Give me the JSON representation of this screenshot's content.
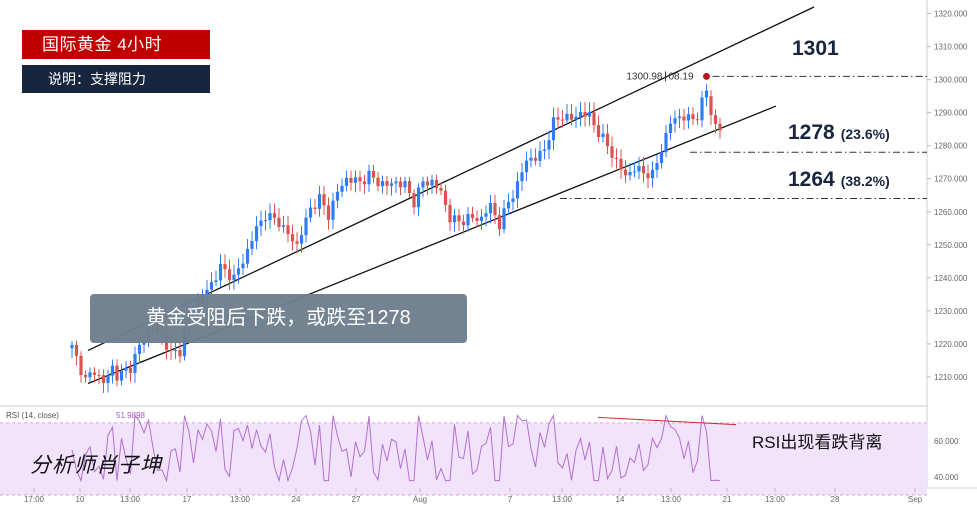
{
  "header": {
    "title_tag": "国际黄金  4小时",
    "subtitle_tag": "说明：支撑阻力"
  },
  "annotations": {
    "callout": "黄金受阻后下跌，或跌至1278",
    "analyst": "分析师肖子坤",
    "rsi_note": "RSI出现看跌背离",
    "peak_label_left": "1300.98",
    "peak_label_right": "08.19"
  },
  "levels": [
    {
      "value": "1301",
      "pct": ""
    },
    {
      "value": "1278",
      "pct": "(23.6%)"
    },
    {
      "value": "1264",
      "pct": "(38.2%)"
    }
  ],
  "colors": {
    "up": "#2f7cf6",
    "down": "#d9534f",
    "rsi_line": "#b46fd1",
    "rsi_band": "#f1e3fb",
    "red_tag": "#c00000",
    "navy_tag": "#17253f"
  },
  "chart_data": [
    {
      "type": "candlestick",
      "title": "",
      "ylim": [
        1203,
        1322
      ],
      "y_ticks": [
        "1320.000",
        "1310.000",
        "1300.000",
        "1290.000",
        "1280.000",
        "1270.000",
        "1260.000",
        "1250.000",
        "1240.000",
        "1230.000",
        "1220.000",
        "1210.000"
      ],
      "x_ticks": [
        "17:00",
        "10",
        "13:00",
        "17",
        "13:00",
        "24",
        "27",
        "Aug",
        "7",
        "13:00",
        "14",
        "13:00",
        "21",
        "13:00",
        "28",
        "Sep"
      ],
      "waypoints": [
        [
          0,
          1219
        ],
        [
          3,
          1209
        ],
        [
          5,
          1212
        ],
        [
          7,
          1208
        ],
        [
          9,
          1213
        ],
        [
          10,
          1210
        ],
        [
          13,
          1213
        ],
        [
          16,
          1222
        ],
        [
          18,
          1225
        ],
        [
          20,
          1222
        ],
        [
          22,
          1217
        ],
        [
          24,
          1218
        ],
        [
          26,
          1228
        ],
        [
          30,
          1236
        ],
        [
          33,
          1243
        ],
        [
          36,
          1240
        ],
        [
          38,
          1245
        ],
        [
          41,
          1255
        ],
        [
          43,
          1259
        ],
        [
          46,
          1257
        ],
        [
          48,
          1253
        ],
        [
          50,
          1250
        ],
        [
          53,
          1261
        ],
        [
          55,
          1264
        ],
        [
          57,
          1259
        ],
        [
          59,
          1266
        ],
        [
          61,
          1270
        ],
        [
          64,
          1269
        ],
        [
          66,
          1271
        ],
        [
          68,
          1269
        ],
        [
          70,
          1268
        ],
        [
          72,
          1269
        ],
        [
          74,
          1268
        ],
        [
          76,
          1263
        ],
        [
          78,
          1269
        ],
        [
          80,
          1269
        ],
        [
          82,
          1266
        ],
        [
          84,
          1258
        ],
        [
          86,
          1257
        ],
        [
          88,
          1258
        ],
        [
          91,
          1258
        ],
        [
          93,
          1262
        ],
        [
          95,
          1256
        ],
        [
          97,
          1263
        ],
        [
          99,
          1268
        ],
        [
          101,
          1276
        ],
        [
          103,
          1276
        ],
        [
          105,
          1279
        ],
        [
          107,
          1287
        ],
        [
          109,
          1289
        ],
        [
          111,
          1288
        ],
        [
          113,
          1290
        ],
        [
          115,
          1289
        ],
        [
          117,
          1284
        ],
        [
          119,
          1280
        ],
        [
          121,
          1275
        ],
        [
          123,
          1271
        ],
        [
          125,
          1273
        ],
        [
          127,
          1272
        ],
        [
          129,
          1271
        ],
        [
          131,
          1279
        ],
        [
          133,
          1287
        ],
        [
          135,
          1289
        ],
        [
          137,
          1288
        ],
        [
          139,
          1289
        ],
        [
          141,
          1297
        ],
        [
          142,
          1290
        ],
        [
          143,
          1286
        ],
        [
          144,
          1285
        ]
      ],
      "last_high": 1300.98,
      "levels": [
        1301,
        1278,
        1264
      ],
      "channel": {
        "upper": [
          [
            1212,
            1218
          ],
          [
            1314,
            1322
          ]
        ],
        "lower": [
          [
            1202,
            1208
          ],
          [
            1285,
            1292
          ]
        ]
      }
    },
    {
      "type": "line",
      "title": "RSI (14, close)",
      "ylim": [
        35,
        76
      ],
      "y_ticks": [
        "60.000",
        "40.000"
      ],
      "last_value": "51.9898",
      "band": [
        30,
        70
      ]
    }
  ]
}
